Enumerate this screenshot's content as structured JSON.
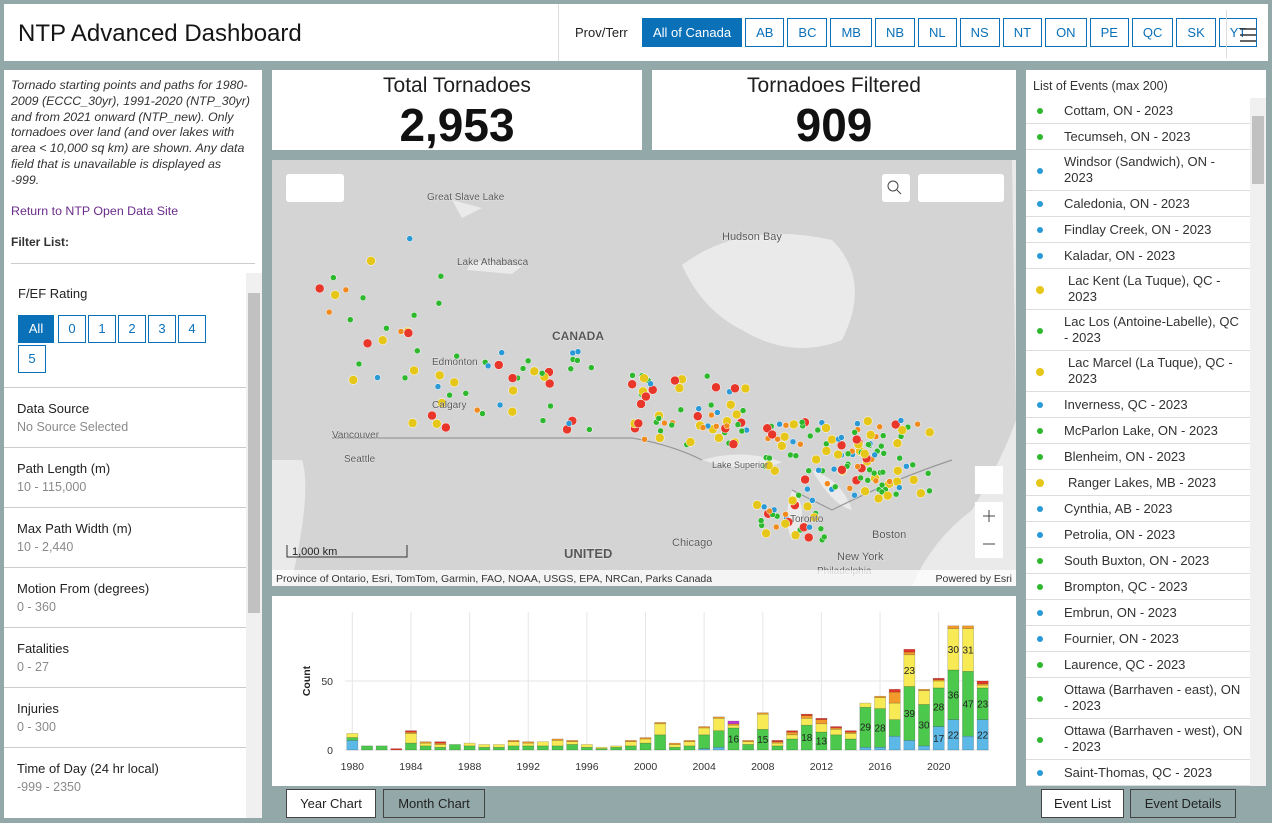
{
  "header": {
    "title": "NTP Advanced Dashboard",
    "prov_label": "Prov/Terr",
    "provinces": [
      "All of Canada",
      "AB",
      "BC",
      "MB",
      "NB",
      "NL",
      "NS",
      "NT",
      "ON",
      "PE",
      "QC",
      "SK",
      "YT"
    ]
  },
  "sidebar": {
    "description": "Tornado starting points and paths for 1980-2009 (ECCC_30yr), 1991-2020 (NTP_30yr) and from 2021 onward (NTP_new).  Only tornadoes over land (and over lakes with area < 10,000 sq km) are shown. Any data field that is unavailable is displayed as -999.",
    "link": "Return to NTP Open Data Site",
    "filter_label": "Filter List:",
    "rating_label": "F/EF Rating",
    "rating_buttons": [
      "All",
      "0",
      "1",
      "2",
      "3",
      "4",
      "5"
    ],
    "filters": [
      {
        "label": "Data Source",
        "value": "No Source Selected"
      },
      {
        "label": "Path Length (m)",
        "value": "10 - 115,000"
      },
      {
        "label": "Max Path Width (m)",
        "value": "10 - 2,440"
      },
      {
        "label": "Motion From (degrees)",
        "value": "0 - 360"
      },
      {
        "label": "Fatalities",
        "value": "0 - 27"
      },
      {
        "label": "Injuries",
        "value": "0 - 300"
      },
      {
        "label": "Time of Day (24 hr local)",
        "value": "-999 - 2350"
      }
    ]
  },
  "stats": [
    {
      "label": "Total Tornadoes",
      "value": "2,953"
    },
    {
      "label": "Tornadoes Filtered",
      "value": "909"
    }
  ],
  "map": {
    "places": [
      "Great Slave Lake",
      "Lake Athabasca",
      "Hudson Bay",
      "CANADA",
      "Edmonton",
      "Calgary",
      "Vancouver",
      "Seattle",
      "Lake Superior",
      "Chicago",
      "New York",
      "Philadelphia",
      "Boston",
      "UNITED",
      "Toronto"
    ],
    "scale": "1,000 km",
    "attribution": "Province of Ontario, Esri, TomTom, Garmin, FAO, NOAA, USGS, EPA, NRCan, Parks Canada",
    "powered": "Powered by Esri"
  },
  "chart_data": {
    "type": "bar",
    "stacked": true,
    "y_label": "Count",
    "x": [
      1980,
      1981,
      1982,
      1983,
      1984,
      1985,
      1986,
      1987,
      1988,
      1989,
      1990,
      1991,
      1992,
      1993,
      1994,
      1995,
      1996,
      1997,
      1998,
      1999,
      2000,
      2001,
      2002,
      2003,
      2004,
      2005,
      2006,
      2007,
      2008,
      2009,
      2010,
      2011,
      2012,
      2013,
      2014,
      2015,
      2016,
      2017,
      2018,
      2019,
      2020,
      2021,
      2022,
      2023
    ],
    "xlim": [
      1979.5,
      2023.5
    ],
    "xticks": [
      1980,
      1984,
      1988,
      1992,
      1996,
      2000,
      2004,
      2008,
      2012,
      2016,
      2020
    ],
    "ylim": [
      0,
      100
    ],
    "yticks": [
      0,
      50
    ],
    "grid": true,
    "series": [
      {
        "color": "#5cb8e6",
        "values": [
          7,
          0,
          0,
          0,
          0,
          0,
          0,
          0,
          0,
          0,
          0,
          0,
          0,
          0,
          0,
          0,
          0,
          0,
          0,
          0,
          0,
          0,
          0,
          0,
          1,
          2,
          0,
          0,
          0,
          0,
          0,
          0,
          0,
          0,
          0,
          2,
          2,
          10,
          7,
          3,
          17,
          22,
          10,
          22
        ]
      },
      {
        "color": "#4cc94c",
        "values": [
          2,
          3,
          3,
          0,
          5,
          3,
          2,
          4,
          3,
          2,
          2,
          3,
          3,
          3,
          3,
          4,
          2,
          1,
          2,
          3,
          5,
          11,
          2,
          3,
          10,
          12,
          16,
          4,
          15,
          3,
          8,
          18,
          13,
          11,
          8,
          29,
          28,
          12,
          39,
          30,
          28,
          36,
          47,
          23
        ]
      },
      {
        "color": "#f7ea55",
        "values": [
          3,
          0,
          0,
          0,
          7,
          2,
          2,
          0,
          2,
          2,
          2,
          3,
          2,
          3,
          4,
          2,
          2,
          1,
          1,
          3,
          3,
          8,
          2,
          3,
          5,
          9,
          2,
          2,
          11,
          2,
          3,
          5,
          6,
          4,
          4,
          3,
          8,
          12,
          23,
          10,
          5,
          30,
          31,
          2
        ]
      },
      {
        "color": "#f39a2b",
        "values": [
          0,
          0,
          0,
          0,
          1,
          1,
          1,
          0,
          0,
          0,
          0,
          1,
          1,
          0,
          1,
          1,
          0,
          0,
          0,
          1,
          1,
          1,
          1,
          1,
          1,
          1,
          1,
          1,
          1,
          1,
          2,
          2,
          3,
          1,
          1,
          0,
          1,
          8,
          2,
          1,
          1,
          2,
          2,
          1
        ]
      },
      {
        "color": "#e8362b",
        "values": [
          0,
          0,
          0,
          1,
          1,
          0,
          1,
          0,
          0,
          0,
          0,
          0,
          0,
          0,
          0,
          0,
          0,
          0,
          0,
          0,
          0,
          0,
          0,
          0,
          0,
          0,
          0,
          0,
          0,
          1,
          1,
          1,
          1,
          1,
          1,
          0,
          0,
          2,
          2,
          0,
          1,
          0,
          0,
          2
        ]
      },
      {
        "color": "#c43ad6",
        "values": [
          0,
          0,
          0,
          0,
          0,
          0,
          0,
          0,
          0,
          0,
          0,
          0,
          0,
          0,
          0,
          0,
          0,
          0,
          0,
          0,
          0,
          0,
          0,
          0,
          0,
          0,
          2,
          0,
          0,
          0,
          0,
          0,
          0,
          0,
          0,
          0,
          0,
          0,
          0,
          0,
          0,
          0,
          0,
          0
        ]
      }
    ]
  },
  "tabs": {
    "chart": [
      "Year Chart",
      "Month Chart"
    ],
    "list": [
      "Event List",
      "Event Details"
    ]
  },
  "events": {
    "title": "List of Events (max 200)",
    "items": [
      {
        "name": "Cottam, ON - 2023",
        "color": "#2db82d"
      },
      {
        "name": "Tecumseh, ON - 2023",
        "color": "#2db82d"
      },
      {
        "name": "Windsor (Sandwich), ON - 2023",
        "color": "#2a9ad6"
      },
      {
        "name": "Caledonia, ON - 2023",
        "color": "#2a9ad6"
      },
      {
        "name": "Findlay Creek, ON - 2023",
        "color": "#2a9ad6"
      },
      {
        "name": "Kaladar, ON - 2023",
        "color": "#2a9ad6"
      },
      {
        "name": "Lac Kent (La Tuque), QC - 2023",
        "color": "#e6c619"
      },
      {
        "name": "Lac Los (Antoine-Labelle), QC - 2023",
        "color": "#2db82d"
      },
      {
        "name": "Lac Marcel (La Tuque), QC - 2023",
        "color": "#e6c619"
      },
      {
        "name": "Inverness, QC - 2023",
        "color": "#2a9ad6"
      },
      {
        "name": "McParlon Lake, ON - 2023",
        "color": "#2db82d"
      },
      {
        "name": "Blenheim, ON - 2023",
        "color": "#2db82d"
      },
      {
        "name": "Ranger Lakes, MB - 2023",
        "color": "#e6c619"
      },
      {
        "name": "Cynthia, AB - 2023",
        "color": "#2a9ad6"
      },
      {
        "name": "Petrolia, ON - 2023",
        "color": "#2a9ad6"
      },
      {
        "name": "South Buxton, ON - 2023",
        "color": "#2db82d"
      },
      {
        "name": "Brompton, QC - 2023",
        "color": "#2db82d"
      },
      {
        "name": "Embrun, ON - 2023",
        "color": "#2a9ad6"
      },
      {
        "name": "Fournier, ON - 2023",
        "color": "#2a9ad6"
      },
      {
        "name": "Laurence, QC - 2023",
        "color": "#2db82d"
      },
      {
        "name": "Ottawa (Barrhaven - east), ON - 2023",
        "color": "#2db82d"
      },
      {
        "name": "Ottawa (Barrhaven - west), ON - 2023",
        "color": "#2db82d"
      },
      {
        "name": "Saint-Thomas, QC - 2023",
        "color": "#2a9ad6"
      }
    ]
  }
}
